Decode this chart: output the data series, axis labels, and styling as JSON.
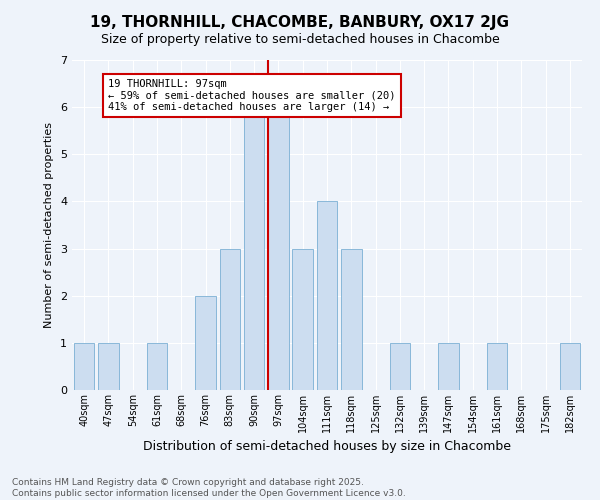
{
  "title": "19, THORNHILL, CHACOMBE, BANBURY, OX17 2JG",
  "subtitle": "Size of property relative to semi-detached houses in Chacombe",
  "xlabel": "Distribution of semi-detached houses by size in Chacombe",
  "ylabel": "Number of semi-detached properties",
  "categories": [
    "40sqm",
    "47sqm",
    "54sqm",
    "61sqm",
    "68sqm",
    "76sqm",
    "83sqm",
    "90sqm",
    "97sqm",
    "104sqm",
    "111sqm",
    "118sqm",
    "125sqm",
    "132sqm",
    "139sqm",
    "147sqm",
    "154sqm",
    "161sqm",
    "168sqm",
    "175sqm",
    "182sqm"
  ],
  "values": [
    1,
    1,
    0,
    1,
    0,
    2,
    3,
    6,
    6,
    3,
    4,
    3,
    0,
    1,
    0,
    1,
    0,
    1,
    0,
    0,
    1
  ],
  "bar_color": "#ccddf0",
  "bar_edge_color": "#7bafd4",
  "highlight_index": 8,
  "highlight_line_color": "#cc0000",
  "annotation_text": "19 THORNHILL: 97sqm\n← 59% of semi-detached houses are smaller (20)\n41% of semi-detached houses are larger (14) →",
  "annotation_box_edge_color": "#cc0000",
  "annotation_fontsize": 7.5,
  "ylim": [
    0,
    7
  ],
  "yticks": [
    0,
    1,
    2,
    3,
    4,
    5,
    6,
    7
  ],
  "footnote": "Contains HM Land Registry data © Crown copyright and database right 2025.\nContains public sector information licensed under the Open Government Licence v3.0.",
  "bg_color": "#eef3fa",
  "plot_bg_color": "#eef3fa",
  "grid_color": "#ffffff",
  "title_fontsize": 11,
  "subtitle_fontsize": 9,
  "xlabel_fontsize": 9,
  "ylabel_fontsize": 8,
  "footnote_fontsize": 6.5
}
